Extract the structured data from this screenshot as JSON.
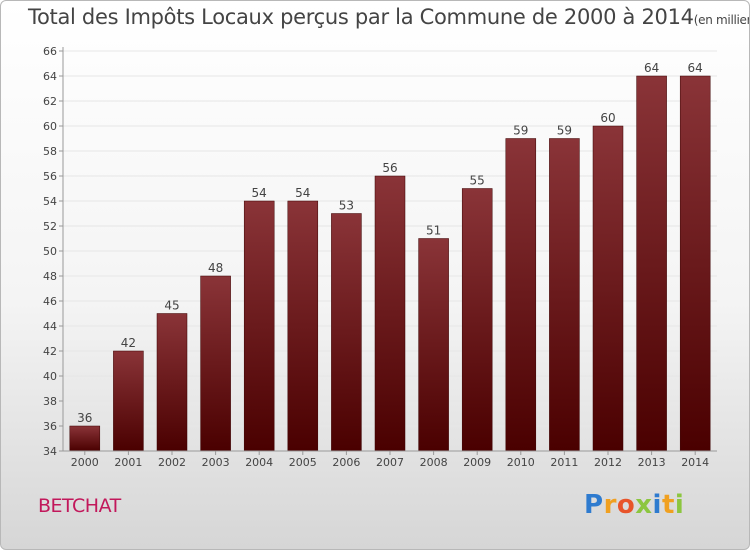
{
  "title": {
    "main": "Total des Impôts Locaux perçus par la Commune de 2000 à 2014",
    "unit": "(en milliers d'€)"
  },
  "commune": "BETCHAT",
  "logo_letters": [
    "P",
    "r",
    "o",
    "x",
    "i",
    "t",
    "i"
  ],
  "colors": {
    "bar_top": "#8a3438",
    "bar_bottom": "#4a0000",
    "commune_text": "#c2185b",
    "axis": "#999999"
  },
  "chart_data": {
    "type": "bar",
    "categories": [
      "2000",
      "2001",
      "2002",
      "2003",
      "2004",
      "2005",
      "2006",
      "2007",
      "2008",
      "2009",
      "2010",
      "2011",
      "2012",
      "2013",
      "2014"
    ],
    "values": [
      36,
      42,
      45,
      48,
      54,
      54,
      53,
      56,
      51,
      55,
      59,
      59,
      60,
      64,
      64
    ],
    "data_labels": [
      "36",
      "42",
      "45",
      "48",
      "54",
      "54",
      "53",
      "56",
      "51",
      "55",
      "59",
      "59",
      "60",
      "64",
      "64"
    ],
    "ylim": [
      34,
      66
    ],
    "yticks": [
      34,
      36,
      38,
      40,
      42,
      44,
      46,
      48,
      50,
      52,
      54,
      56,
      58,
      60,
      62,
      64,
      66
    ],
    "grid": "horizontal",
    "title": "Total des Impôts Locaux perçus par la Commune de 2000 à 2014",
    "xlabel": "",
    "ylabel": ""
  }
}
